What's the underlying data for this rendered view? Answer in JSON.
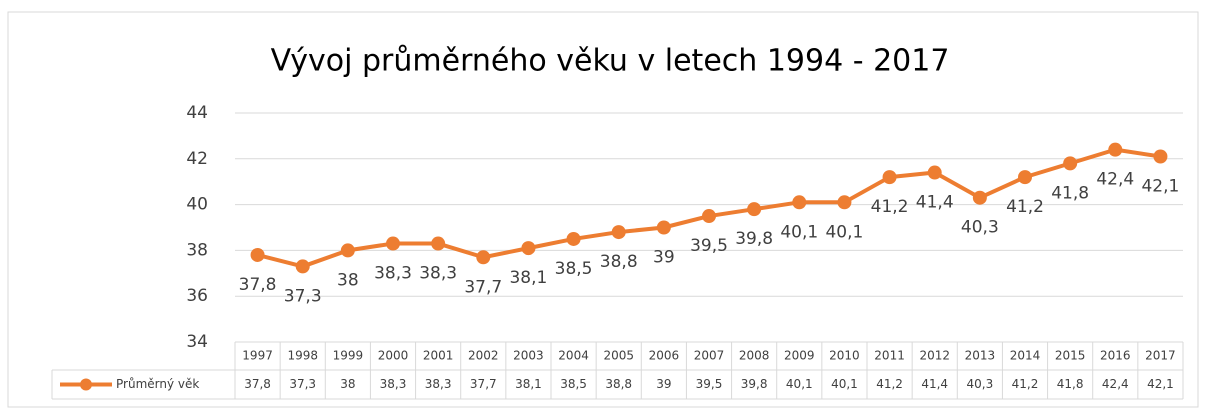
{
  "chart_data": {
    "type": "line",
    "title": "Vývoj průměrného věku v letech 1994 - 2017",
    "categories": [
      "1997",
      "1998",
      "1999",
      "2000",
      "2001",
      "2002",
      "2003",
      "2004",
      "2005",
      "2006",
      "2007",
      "2008",
      "2009",
      "2010",
      "2011",
      "2012",
      "2013",
      "2014",
      "2015",
      "2016",
      "2017"
    ],
    "series": [
      {
        "name": "Průměrný věk",
        "color": "#ed7d31",
        "values": [
          37.8,
          37.3,
          38,
          38.3,
          38.3,
          37.7,
          38.1,
          38.5,
          38.8,
          39,
          39.5,
          39.8,
          40.1,
          40.1,
          41.2,
          41.4,
          40.3,
          41.2,
          41.8,
          42.4,
          42.1
        ],
        "value_labels": [
          "37,8",
          "37,3",
          "38",
          "38,3",
          "38,3",
          "37,7",
          "38,1",
          "38,5",
          "38,8",
          "39",
          "39,5",
          "39,8",
          "40,1",
          "40,1",
          "41,2",
          "41,4",
          "40,3",
          "41,2",
          "41,8",
          "42,4",
          "42,1"
        ]
      }
    ],
    "ylim": [
      34,
      44
    ],
    "yticks": [
      34,
      36,
      38,
      40,
      42,
      44
    ],
    "grid": true
  }
}
